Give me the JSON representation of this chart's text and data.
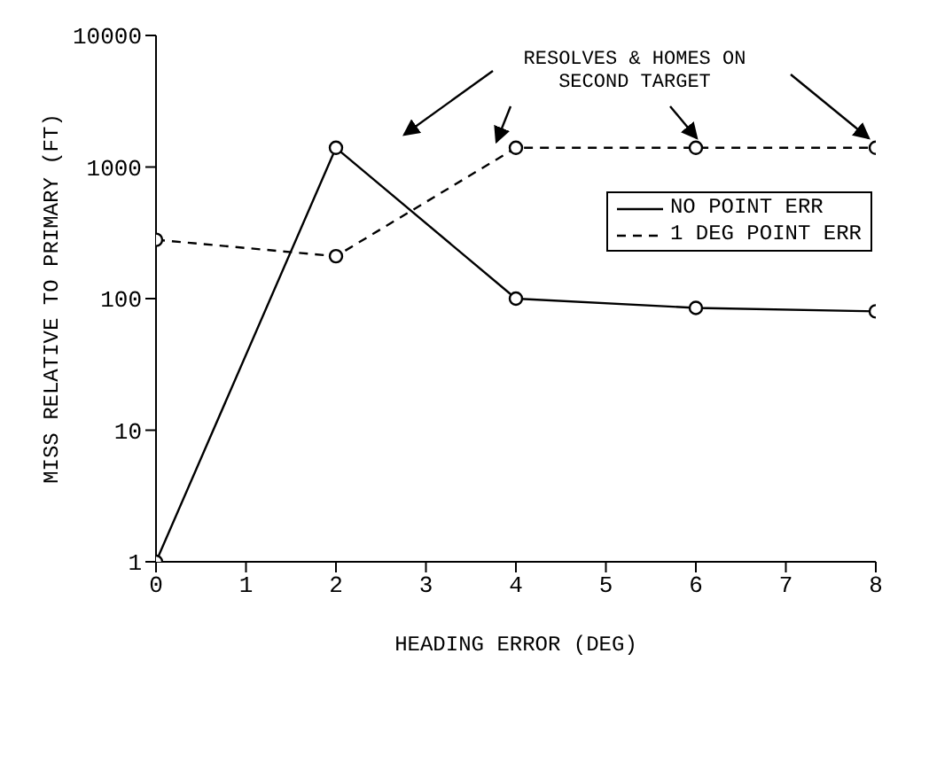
{
  "chart_data": {
    "type": "line",
    "xlabel": "HEADING ERROR (DEG)",
    "ylabel": "MISS RELATIVE TO PRIMARY (FT)",
    "x": [
      0,
      2,
      4,
      6,
      8
    ],
    "series": [
      {
        "name": "NO POINT ERR",
        "color": "#000000",
        "line_style": "solid",
        "values": [
          1,
          1400,
          100,
          85,
          80
        ]
      },
      {
        "name": "1 DEG POINT ERR",
        "color": "#000000",
        "line_style": "dashed",
        "values": [
          280,
          210,
          1400,
          1400,
          1400
        ]
      }
    ],
    "xlim": [
      0,
      8
    ],
    "xticks": [
      0,
      1,
      2,
      3,
      4,
      5,
      6,
      7,
      8
    ],
    "ylim": [
      1,
      10000
    ],
    "yticks": [
      1,
      10,
      100,
      1000,
      10000
    ],
    "log": "y",
    "grid": false,
    "legend": "right",
    "marker": "circle",
    "annotations": [
      "RESOLVES & HOMES ON SECOND TARGET"
    ]
  }
}
